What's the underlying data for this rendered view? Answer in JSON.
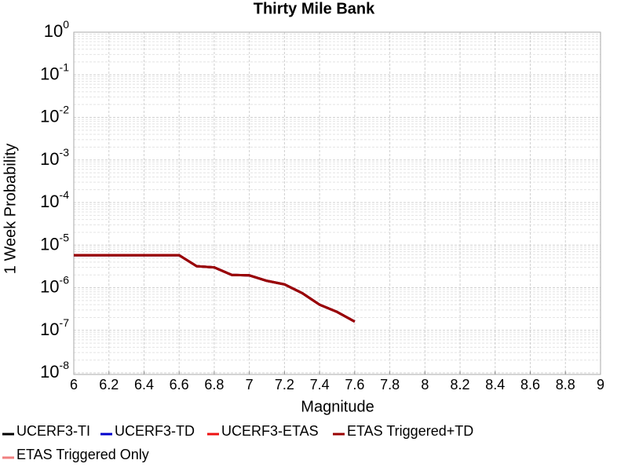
{
  "chart_data": {
    "type": "line",
    "title": "Thirty Mile Bank",
    "xlabel": "Magnitude",
    "ylabel": "1 Week Probability",
    "x": [
      6.0,
      6.1,
      6.2,
      6.3,
      6.4,
      6.5,
      6.6,
      6.7,
      6.8,
      6.9,
      7.0,
      7.1,
      7.2,
      7.3,
      7.4,
      7.5,
      7.6
    ],
    "series": [
      {
        "name": "UCERF3-TI",
        "color": "#000000",
        "values": [
          5.8e-06,
          5.8e-06,
          5.8e-06,
          5.8e-06,
          5.8e-06,
          5.8e-06,
          5.8e-06,
          3.2e-06,
          3e-06,
          2e-06,
          1.95e-06,
          1.45e-06,
          1.2e-06,
          7.5e-07,
          4e-07,
          2.7e-07,
          1.6e-07
        ]
      },
      {
        "name": "UCERF3-TD",
        "color": "#0000cc",
        "values": [
          5.8e-06,
          5.8e-06,
          5.8e-06,
          5.8e-06,
          5.8e-06,
          5.8e-06,
          5.8e-06,
          3.2e-06,
          3e-06,
          2e-06,
          1.95e-06,
          1.45e-06,
          1.2e-06,
          7.5e-07,
          4e-07,
          2.7e-07,
          1.6e-07
        ]
      },
      {
        "name": "UCERF3-ETAS",
        "color": "#ee1111",
        "values": [
          5.8e-06,
          5.8e-06,
          5.8e-06,
          5.8e-06,
          5.8e-06,
          5.8e-06,
          5.8e-06,
          3.2e-06,
          3e-06,
          2e-06,
          1.95e-06,
          1.45e-06,
          1.2e-06,
          7.5e-07,
          4e-07,
          2.7e-07,
          1.6e-07
        ]
      },
      {
        "name": "ETAS Triggered+TD",
        "color": "#990000",
        "values": [
          5.8e-06,
          5.8e-06,
          5.8e-06,
          5.8e-06,
          5.8e-06,
          5.8e-06,
          5.8e-06,
          3.2e-06,
          3e-06,
          2e-06,
          1.95e-06,
          1.45e-06,
          1.2e-06,
          7.5e-07,
          4e-07,
          2.7e-07,
          1.6e-07
        ]
      },
      {
        "name": "ETAS Triggered Only",
        "color": "#f08080",
        "values": [
          null,
          null,
          null,
          null,
          null,
          null,
          null,
          null,
          null,
          null,
          null,
          null,
          null,
          null,
          null,
          null,
          null
        ]
      }
    ],
    "xlim": [
      6,
      9
    ],
    "xticks": [
      6,
      6.2,
      6.4,
      6.6,
      6.8,
      7,
      7.2,
      7.4,
      7.6,
      7.8,
      8,
      8.2,
      8.4,
      8.6,
      8.8,
      9
    ],
    "ylim": [
      9.2e-09,
      1
    ],
    "log_y": true,
    "yticks": [
      {
        "value": 1e-08,
        "label": "10",
        "exponent": "-8"
      },
      {
        "value": 1e-07,
        "label": "10",
        "exponent": "-7"
      },
      {
        "value": 1e-06,
        "label": "10",
        "exponent": "-6"
      },
      {
        "value": 1e-05,
        "label": "10",
        "exponent": "-5"
      },
      {
        "value": 0.0001,
        "label": "10",
        "exponent": "-4"
      },
      {
        "value": 0.001,
        "label": "10",
        "exponent": "-3"
      },
      {
        "value": 0.01,
        "label": "10",
        "exponent": "-2"
      },
      {
        "value": 0.1,
        "label": "10",
        "exponent": "-1"
      },
      {
        "value": 1,
        "label": "10",
        "exponent": "0"
      }
    ],
    "grid": true,
    "legend": "bottom"
  }
}
